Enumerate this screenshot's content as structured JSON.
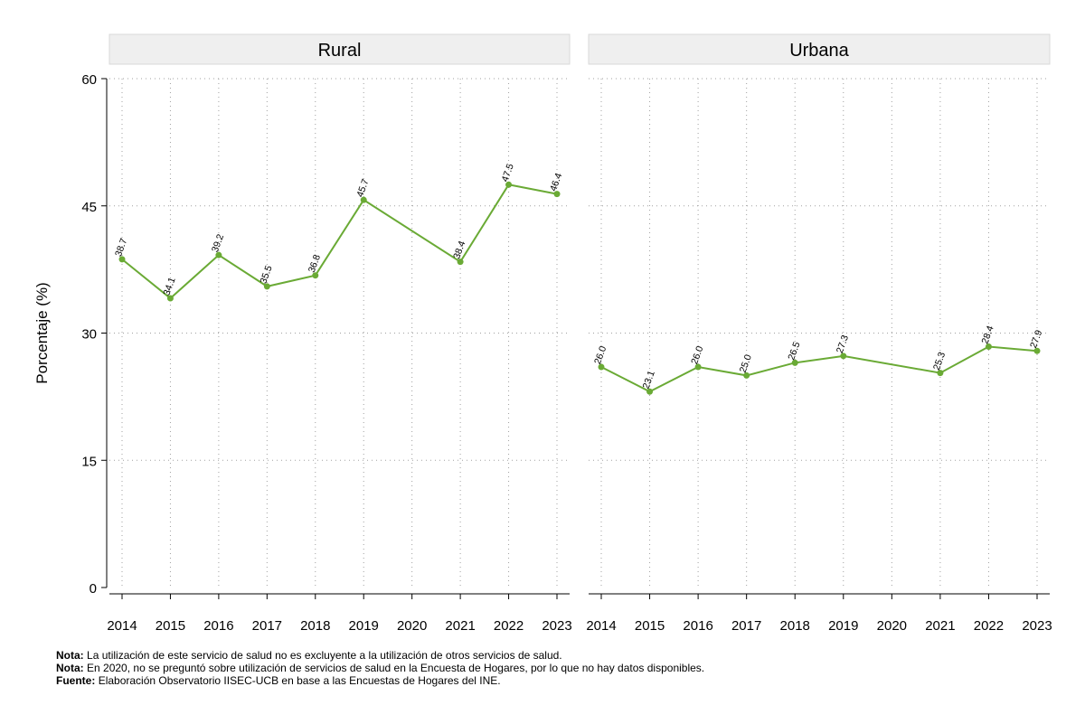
{
  "chart_data": {
    "type": "line",
    "ylabel": "Porcentaje (%)",
    "xlabel": "",
    "ylim": [
      0,
      60
    ],
    "yticks": [
      0,
      15,
      30,
      45,
      60
    ],
    "xticks": [
      "2014",
      "2015",
      "2016",
      "2017",
      "2018",
      "2019",
      "2020",
      "2021",
      "2022",
      "2023"
    ],
    "grid": true,
    "line_color": "#6aaa35",
    "panels": [
      {
        "title": "Rural",
        "x": [
          "2014",
          "2015",
          "2016",
          "2017",
          "2018",
          "2019",
          "2021",
          "2022",
          "2023"
        ],
        "values": [
          38.7,
          34.1,
          39.2,
          35.5,
          36.8,
          45.7,
          38.4,
          47.5,
          46.4
        ],
        "labels": [
          "38.7",
          "34.1",
          "39.2",
          "35.5",
          "36.8",
          "45.7",
          "38.4",
          "47.5",
          "46.4"
        ]
      },
      {
        "title": "Urbana",
        "x": [
          "2014",
          "2015",
          "2016",
          "2017",
          "2018",
          "2019",
          "2021",
          "2022",
          "2023"
        ],
        "values": [
          26.0,
          23.1,
          26.0,
          25.0,
          26.5,
          27.3,
          25.3,
          28.4,
          27.9
        ],
        "labels": [
          "26.0",
          "23.1",
          "26.0",
          "25.0",
          "26.5",
          "27.3",
          "25.3",
          "28.4",
          "27.9"
        ]
      }
    ]
  },
  "notes": [
    {
      "label": "Nota:",
      "text": "La utilización de este servicio de salud no es excluyente a la utilización de otros servicios de salud."
    },
    {
      "label": "Nota:",
      "text": "En 2020, no se preguntó sobre utilización de servicios de salud en la Encuesta de Hogares, por lo que no hay datos disponibles."
    },
    {
      "label": "Fuente:",
      "text": "Elaboración Observatorio IISEC-UCB en base a las Encuestas de Hogares del INE."
    }
  ]
}
